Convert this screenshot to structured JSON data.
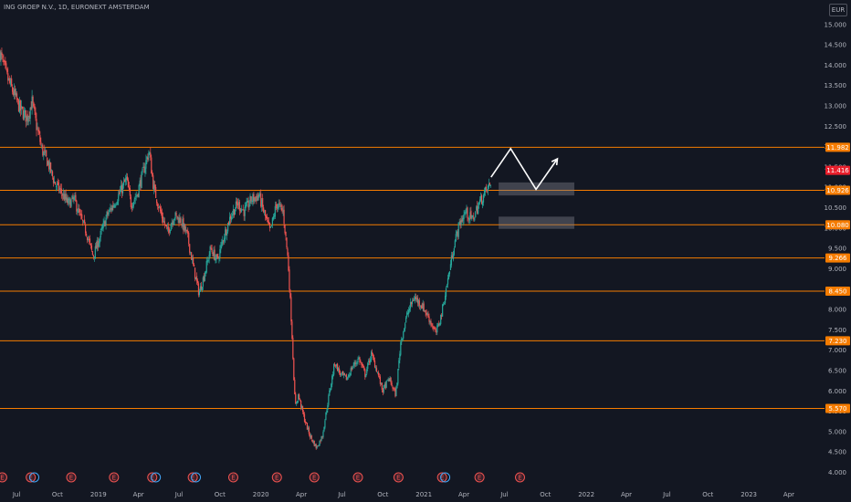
{
  "header": {
    "title": "ING GROEP N.V., 1D, EURONEXT AMSTERDAM",
    "currency": "EUR"
  },
  "colors": {
    "background": "#131722",
    "up": "#26a69a",
    "down": "#ef5350",
    "level": "#f57c00",
    "badge": "#f57c00",
    "current": "#e91e2b",
    "text": "#b2b5be",
    "annotation": "#ffffff",
    "zone": "#787b86"
  },
  "event_icon_glyph": "E",
  "chart_data": {
    "type": "candlestick",
    "title": "ING GROEP N.V., 1D, EURONEXT AMSTERDAM",
    "currency": "EUR",
    "x_axis": {
      "range": [
        "2018-05-25",
        "2023-06-20"
      ],
      "ticks": [
        {
          "label": "Jul",
          "date": "2018-07-01"
        },
        {
          "label": "Oct",
          "date": "2018-10-01"
        },
        {
          "label": "2019",
          "date": "2019-01-01"
        },
        {
          "label": "Apr",
          "date": "2019-04-01"
        },
        {
          "label": "Jul",
          "date": "2019-07-01"
        },
        {
          "label": "Oct",
          "date": "2019-10-01"
        },
        {
          "label": "2020",
          "date": "2020-01-01"
        },
        {
          "label": "Apr",
          "date": "2020-04-01"
        },
        {
          "label": "Jul",
          "date": "2020-07-01"
        },
        {
          "label": "Oct",
          "date": "2020-10-01"
        },
        {
          "label": "2021",
          "date": "2021-01-01"
        },
        {
          "label": "Apr",
          "date": "2021-04-01"
        },
        {
          "label": "Jul",
          "date": "2021-07-01"
        },
        {
          "label": "Oct",
          "date": "2021-10-01"
        },
        {
          "label": "2022",
          "date": "2022-01-01"
        },
        {
          "label": "Apr",
          "date": "2022-04-01"
        },
        {
          "label": "Jul",
          "date": "2022-07-01"
        },
        {
          "label": "Oct",
          "date": "2022-10-01"
        },
        {
          "label": "2023",
          "date": "2023-01-01"
        },
        {
          "label": "Apr",
          "date": "2023-04-01"
        }
      ]
    },
    "y_axis": {
      "range": [
        3.9,
        15.6
      ],
      "ticks": [
        "4.000",
        "4.500",
        "5.000",
        "5.500",
        "6.000",
        "6.500",
        "7.000",
        "7.500",
        "8.000",
        "8.500",
        "9.000",
        "9.500",
        "10.000",
        "10.500",
        "11.000",
        "11.500",
        "12.000",
        "12.500",
        "13.000",
        "13.500",
        "14.000",
        "14.500",
        "15.000"
      ]
    },
    "price_path": [
      [
        "2018-05-25",
        14.3
      ],
      [
        "2018-06-10",
        13.7
      ],
      [
        "2018-06-25",
        13.3
      ],
      [
        "2018-07-10",
        12.9
      ],
      [
        "2018-07-25",
        12.7
      ],
      [
        "2018-08-05",
        13.1
      ],
      [
        "2018-08-15",
        12.5
      ],
      [
        "2018-08-28",
        11.9
      ],
      [
        "2018-09-10",
        11.6
      ],
      [
        "2018-09-25",
        11.1
      ],
      [
        "2018-10-08",
        10.9
      ],
      [
        "2018-10-25",
        10.6
      ],
      [
        "2018-11-08",
        10.7
      ],
      [
        "2018-11-20",
        10.3
      ],
      [
        "2018-12-05",
        9.9
      ],
      [
        "2018-12-20",
        9.3
      ],
      [
        "2019-01-05",
        9.8
      ],
      [
        "2019-01-20",
        10.3
      ],
      [
        "2019-02-05",
        10.6
      ],
      [
        "2019-02-20",
        10.9
      ],
      [
        "2019-03-05",
        11.2
      ],
      [
        "2019-03-15",
        10.6
      ],
      [
        "2019-03-28",
        10.8
      ],
      [
        "2019-04-12",
        11.4
      ],
      [
        "2019-04-25",
        11.9
      ],
      [
        "2019-05-05",
        11.0
      ],
      [
        "2019-05-20",
        10.4
      ],
      [
        "2019-06-05",
        9.9
      ],
      [
        "2019-06-20",
        10.3
      ],
      [
        "2019-07-05",
        10.2
      ],
      [
        "2019-07-20",
        9.8
      ],
      [
        "2019-08-05",
        8.9
      ],
      [
        "2019-08-15",
        8.4
      ],
      [
        "2019-08-28",
        8.9
      ],
      [
        "2019-09-10",
        9.5
      ],
      [
        "2019-09-25",
        9.2
      ],
      [
        "2019-10-10",
        9.8
      ],
      [
        "2019-10-25",
        10.3
      ],
      [
        "2019-11-10",
        10.6
      ],
      [
        "2019-11-25",
        10.4
      ],
      [
        "2019-12-10",
        10.7
      ],
      [
        "2019-12-28",
        10.8
      ],
      [
        "2020-01-10",
        10.3
      ],
      [
        "2020-01-22",
        9.9
      ],
      [
        "2020-02-05",
        10.6
      ],
      [
        "2020-02-20",
        10.4
      ],
      [
        "2020-03-02",
        9.2
      ],
      [
        "2020-03-10",
        7.6
      ],
      [
        "2020-03-18",
        5.6
      ],
      [
        "2020-03-25",
        5.9
      ],
      [
        "2020-04-08",
        5.3
      ],
      [
        "2020-04-20",
        4.9
      ],
      [
        "2020-05-05",
        4.6
      ],
      [
        "2020-05-18",
        4.9
      ],
      [
        "2020-06-02",
        5.9
      ],
      [
        "2020-06-15",
        6.7
      ],
      [
        "2020-06-28",
        6.4
      ],
      [
        "2020-07-12",
        6.3
      ],
      [
        "2020-07-25",
        6.6
      ],
      [
        "2020-08-08",
        6.8
      ],
      [
        "2020-08-22",
        6.4
      ],
      [
        "2020-09-05",
        6.9
      ],
      [
        "2020-09-18",
        6.5
      ],
      [
        "2020-09-30",
        6.0
      ],
      [
        "2020-10-15",
        6.3
      ],
      [
        "2020-10-30",
        5.9
      ],
      [
        "2020-11-10",
        7.2
      ],
      [
        "2020-11-25",
        7.9
      ],
      [
        "2020-12-10",
        8.3
      ],
      [
        "2020-12-28",
        8.1
      ],
      [
        "2021-01-12",
        7.8
      ],
      [
        "2021-01-28",
        7.4
      ],
      [
        "2021-02-10",
        7.9
      ],
      [
        "2021-02-25",
        8.8
      ],
      [
        "2021-03-10",
        9.6
      ],
      [
        "2021-03-22",
        10.1
      ],
      [
        "2021-04-05",
        10.4
      ],
      [
        "2021-04-20",
        10.2
      ],
      [
        "2021-05-05",
        10.6
      ],
      [
        "2021-05-20",
        10.9
      ],
      [
        "2021-06-01",
        11.1
      ]
    ],
    "levels": [
      {
        "label": "11.982",
        "value": 11.982
      },
      {
        "label": "10.926",
        "value": 10.926
      },
      {
        "label": "10.080",
        "value": 10.08
      },
      {
        "label": "9.266",
        "value": 9.266
      },
      {
        "label": "8.450",
        "value": 8.45
      },
      {
        "label": "7.230",
        "value": 7.23
      },
      {
        "label": "5.570",
        "value": 5.57
      }
    ],
    "current_price": {
      "label": "11.416",
      "value": 11.416
    },
    "zones": [
      {
        "from": "2021-06-18",
        "to": "2021-12-05",
        "low": 10.8,
        "high": 11.12
      },
      {
        "from": "2021-06-18",
        "to": "2021-12-05",
        "low": 9.98,
        "high": 10.28
      }
    ],
    "projection": [
      [
        "2021-06-01",
        11.25
      ],
      [
        "2021-07-15",
        11.95
      ],
      [
        "2021-09-10",
        10.95
      ],
      [
        "2021-10-28",
        11.7
      ]
    ],
    "events": [
      {
        "date": "2018-05-30",
        "kind": "E"
      },
      {
        "date": "2018-08-02",
        "kind": "E"
      },
      {
        "date": "2018-08-10",
        "kind": "D"
      },
      {
        "date": "2018-11-01",
        "kind": "E"
      },
      {
        "date": "2019-02-05",
        "kind": "E"
      },
      {
        "date": "2019-05-02",
        "kind": "E"
      },
      {
        "date": "2019-05-10",
        "kind": "D"
      },
      {
        "date": "2019-08-01",
        "kind": "E"
      },
      {
        "date": "2019-08-08",
        "kind": "D"
      },
      {
        "date": "2019-10-31",
        "kind": "E"
      },
      {
        "date": "2020-02-06",
        "kind": "E"
      },
      {
        "date": "2020-04-30",
        "kind": "E"
      },
      {
        "date": "2020-08-06",
        "kind": "E"
      },
      {
        "date": "2020-11-05",
        "kind": "E"
      },
      {
        "date": "2021-02-11",
        "kind": "E"
      },
      {
        "date": "2021-02-18",
        "kind": "D"
      },
      {
        "date": "2021-05-06",
        "kind": "E"
      },
      {
        "date": "2021-08-05",
        "kind": "E"
      }
    ]
  }
}
